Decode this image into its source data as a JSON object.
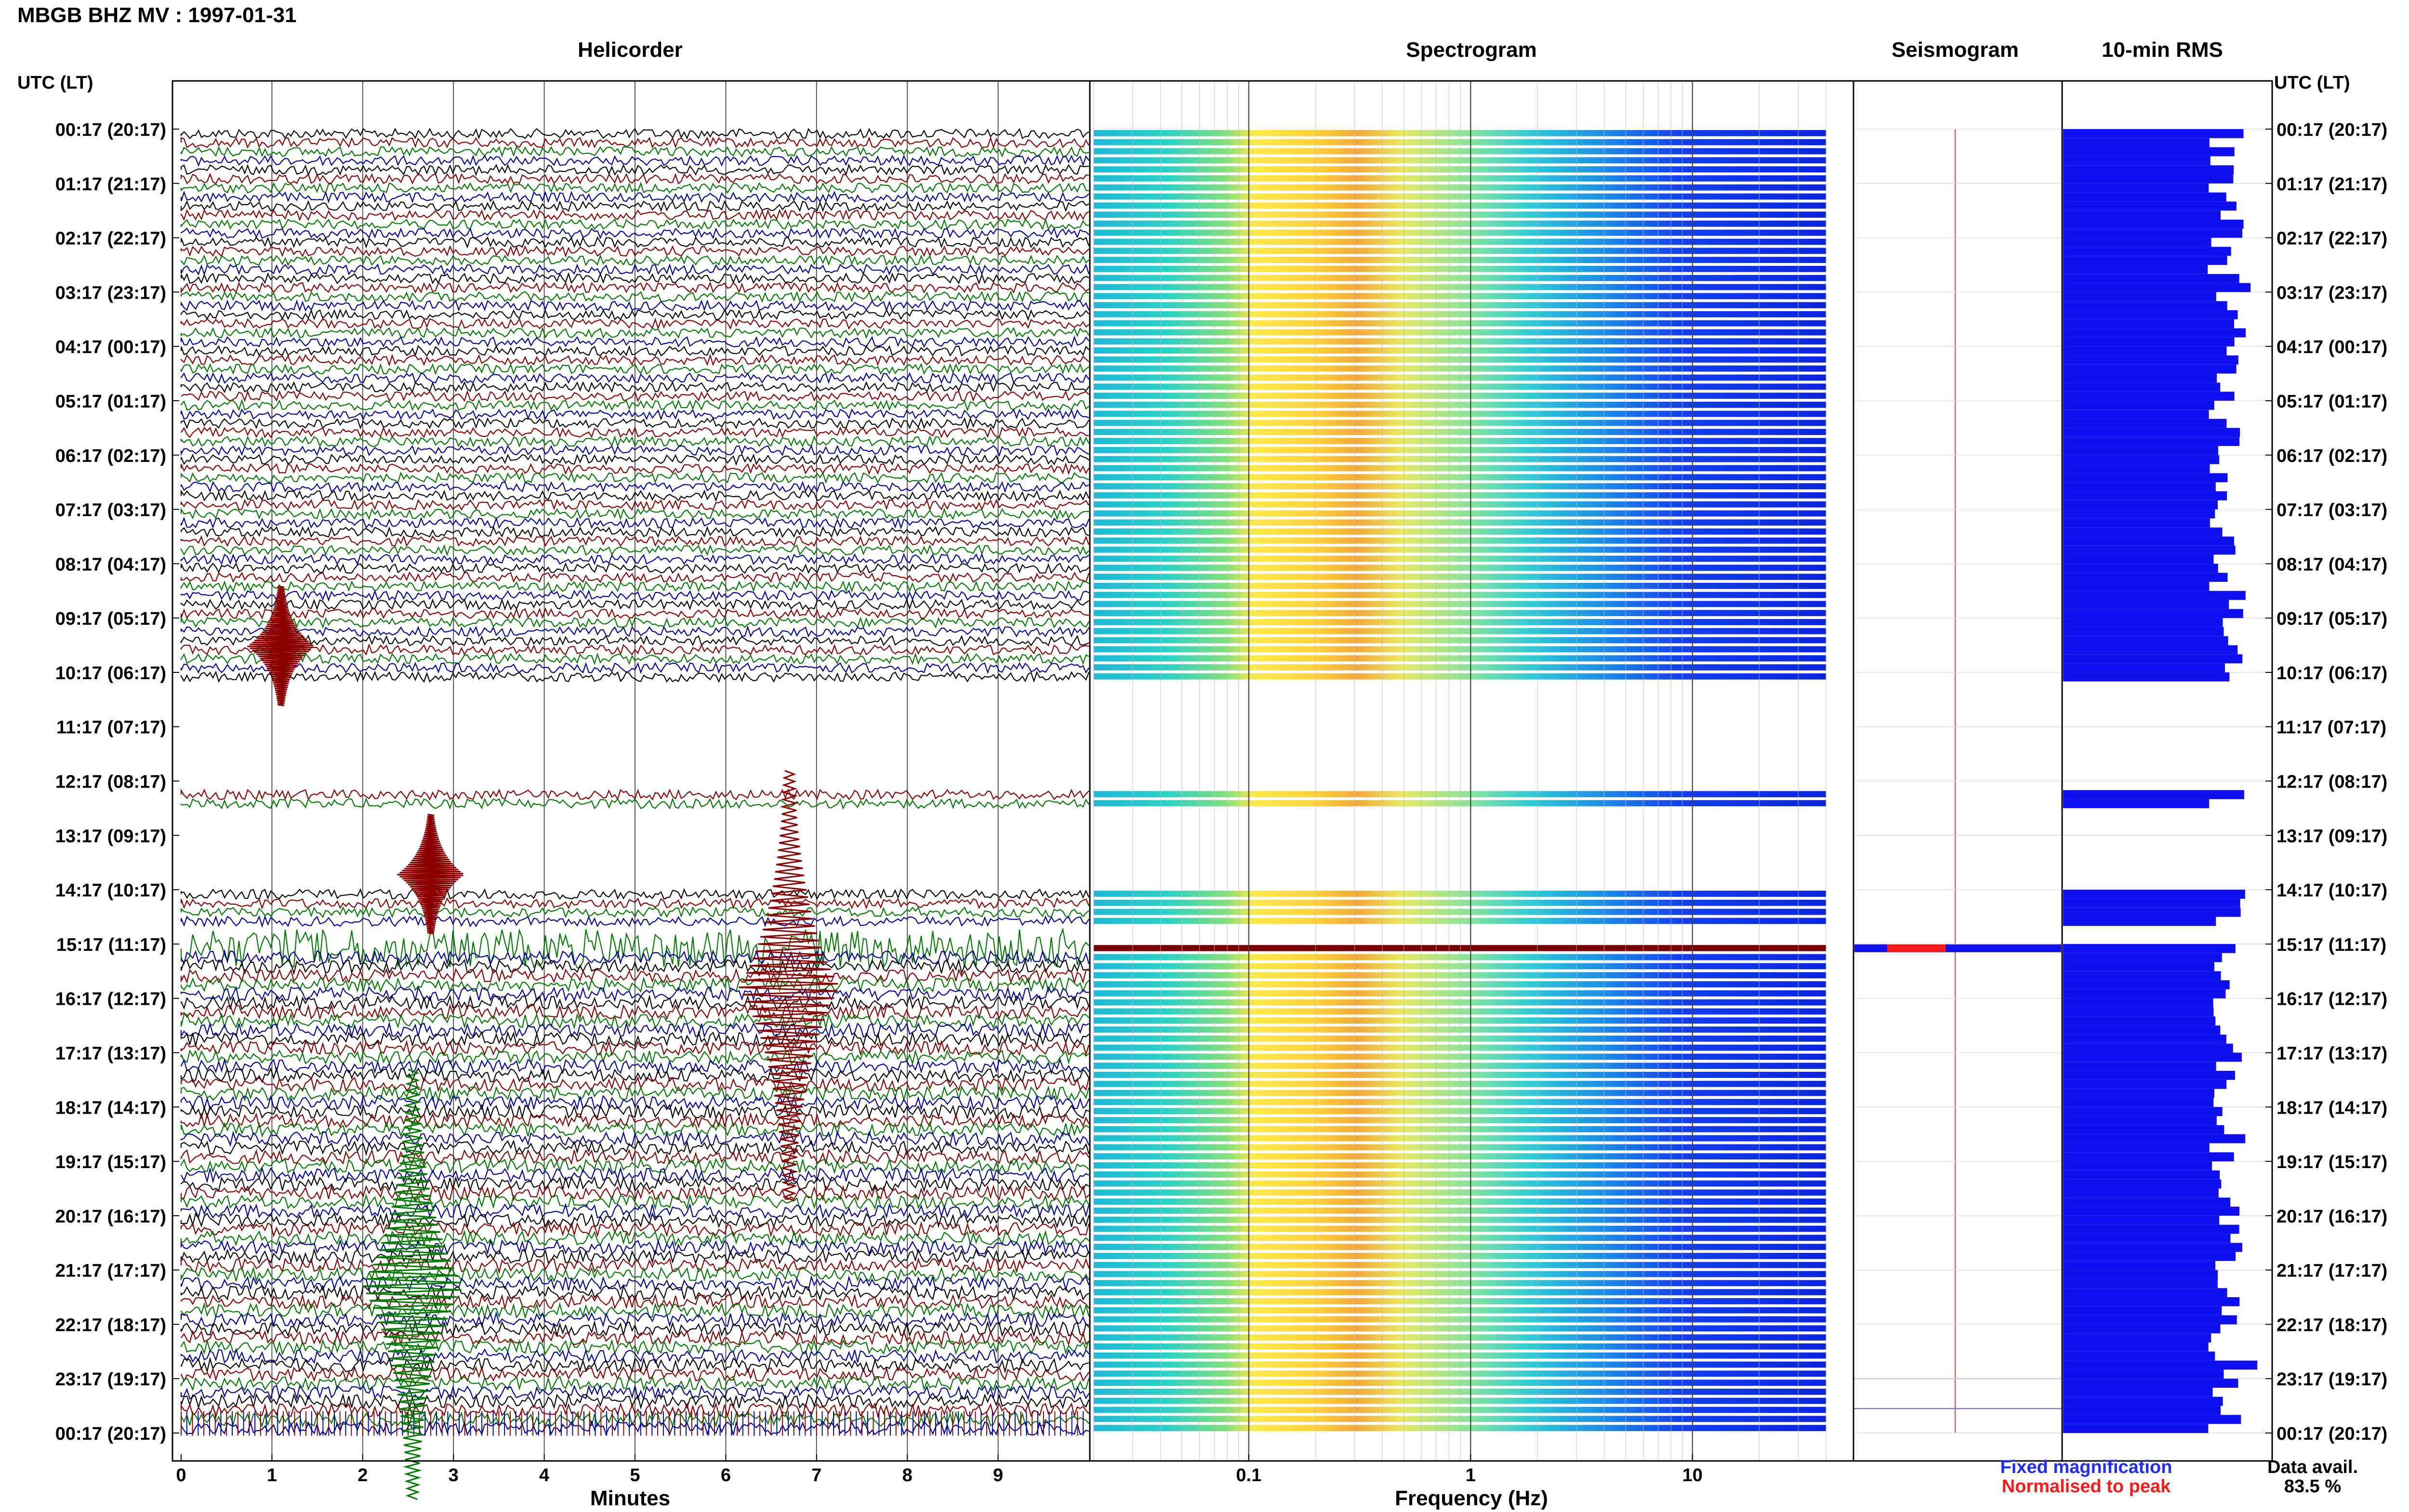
{
  "header": {
    "title": "MBGB BHZ MV : 1997-01-31",
    "left_axis_label": "UTC (LT)",
    "right_axis_label": "UTC (LT)"
  },
  "panels": {
    "helicorder": "Helicorder",
    "spectrogram": "Spectrogram",
    "seismogram": "Seismogram",
    "rms": "10-min RMS"
  },
  "axes": {
    "minutes_label": "Minutes",
    "frequency_label": "Frequency (Hz)",
    "minute_ticks": [
      "0",
      "1",
      "2",
      "3",
      "4",
      "5",
      "6",
      "7",
      "8",
      "9"
    ],
    "frequency_ticks": [
      "0.1",
      "1",
      "10"
    ]
  },
  "time_labels": [
    "00:17 (20:17)",
    "01:17 (21:17)",
    "02:17 (22:17)",
    "03:17 (23:17)",
    "04:17 (00:17)",
    "05:17 (01:17)",
    "06:17 (02:17)",
    "07:17 (03:17)",
    "08:17 (04:17)",
    "09:17 (05:17)",
    "10:17 (06:17)",
    "11:17 (07:17)",
    "12:17 (08:17)",
    "13:17 (09:17)",
    "14:17 (10:17)",
    "15:17 (11:17)",
    "16:17 (12:17)",
    "17:17 (13:17)",
    "18:17 (14:17)",
    "19:17 (15:17)",
    "20:17 (16:17)",
    "21:17 (17:17)",
    "22:17 (18:17)",
    "23:17 (19:17)",
    "00:17 (20:17)"
  ],
  "legend": {
    "fixed": "Fixed magnification",
    "normalised": "Normalised to peak",
    "fixed_color": "#1f2bff",
    "normalised_color": "#ff1a1a"
  },
  "availability": {
    "label": "Data avail.",
    "value": "83.5 %"
  },
  "colors": {
    "trace_black": "#000000",
    "trace_red": "#8b0000",
    "trace_green": "#007a00",
    "trace_blue": "#0000a0",
    "rms_bar": "#1010ee",
    "rms_highlight": "#ff1a1a"
  },
  "chart_data": {
    "type": "heatmap",
    "rows_per_hour": 6,
    "total_rows": 144,
    "gap_hours": [
      10,
      11,
      12,
      13
    ],
    "data_ranges_hours": [
      [
        0,
        10.1
      ],
      [
        12.1,
        12.5
      ],
      [
        14.0,
        14.6
      ],
      [
        15.0,
        24.0
      ]
    ],
    "saturated_row_hours": [
      15.0,
      15.15
    ],
    "frequency_range_hz": [
      0.02,
      40
    ],
    "minutes_range": [
      0,
      10
    ],
    "events": [
      {
        "minute": 1.1,
        "hour": 9.3,
        "color": "trace_red"
      },
      {
        "minute": 2.75,
        "hour": 13.5,
        "color": "trace_red"
      },
      {
        "minute": 6.7,
        "hour": 15.0,
        "color": "trace_red"
      },
      {
        "minute": 2.55,
        "hour": 20.5,
        "color": "trace_green"
      }
    ]
  }
}
